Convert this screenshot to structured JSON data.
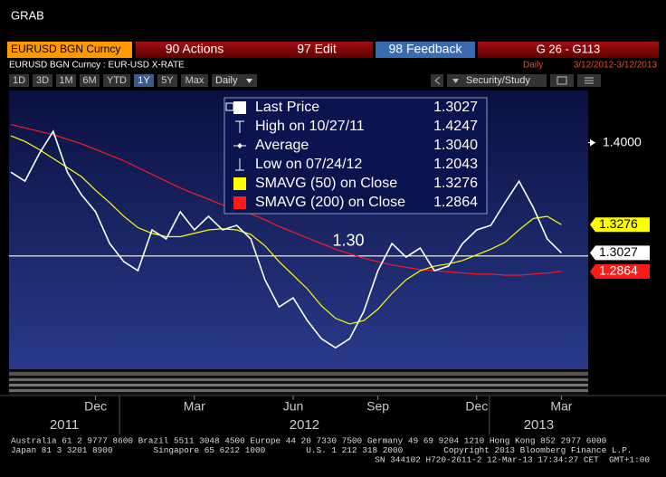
{
  "window": {
    "title": "GRAB"
  },
  "header": {
    "security": "EURUSD BGN Curncy",
    "actions": "90 Actions",
    "edit": "97 Edit",
    "feedback": "98 Feedback",
    "page": "G 26 - G113"
  },
  "subheader": {
    "description": "EURUSD BGN Curncy : EUR-USD X-RATE",
    "period": "Daily",
    "range": "3/12/2012-3/12/2013"
  },
  "toolbar": {
    "ranges": [
      "1D",
      "3D",
      "1M",
      "6M",
      "YTD",
      "1Y",
      "5Y",
      "Max"
    ],
    "selected_index": 5,
    "frequency": "Daily",
    "study": "Security/Study"
  },
  "chart_data": {
    "type": "line",
    "categories": [
      null,
      null,
      null,
      null,
      null,
      null,
      "Dec",
      null,
      null,
      null,
      null,
      null,
      null,
      "Mar",
      null,
      null,
      null,
      null,
      null,
      null,
      "Jun",
      null,
      null,
      null,
      null,
      null,
      "Sep",
      null,
      null,
      null,
      null,
      null,
      null,
      "Dec",
      null,
      null,
      null,
      null,
      null,
      "Mar"
    ],
    "periods": [
      "2011",
      "2012",
      "2013"
    ],
    "series": [
      {
        "name": "Last Price",
        "color": "#ffffff",
        "last_label": "1.3027",
        "values": [
          1.374,
          1.366,
          1.39,
          1.41,
          1.374,
          1.354,
          1.339,
          1.311,
          1.295,
          1.287,
          1.323,
          1.315,
          1.339,
          1.323,
          1.335,
          1.323,
          1.327,
          1.315,
          1.279,
          1.255,
          1.263,
          1.243,
          1.227,
          1.219,
          1.227,
          1.251,
          1.287,
          1.311,
          1.299,
          1.307,
          1.287,
          1.291,
          1.311,
          1.323,
          1.327,
          1.347,
          1.366,
          1.343,
          1.315,
          1.3027
        ]
      },
      {
        "name": "SMAVG (50) on Close",
        "color": "#ffff00",
        "last_label": "1.3276",
        "values": [
          1.406,
          1.401,
          1.394,
          1.386,
          1.378,
          1.37,
          1.358,
          1.347,
          1.335,
          1.325,
          1.32,
          1.317,
          1.317,
          1.32,
          1.323,
          1.324,
          1.323,
          1.319,
          1.309,
          1.295,
          1.283,
          1.271,
          1.256,
          1.245,
          1.24,
          1.243,
          1.253,
          1.267,
          1.279,
          1.287,
          1.291,
          1.293,
          1.296,
          1.301,
          1.306,
          1.312,
          1.323,
          1.333,
          1.335,
          1.3276
        ]
      },
      {
        "name": "SMAVG (200) on Close",
        "color": "#ff1a1a",
        "last_label": "1.2864",
        "values": [
          1.416,
          1.413,
          1.41,
          1.407,
          1.403,
          1.399,
          1.394,
          1.389,
          1.384,
          1.378,
          1.372,
          1.366,
          1.36,
          1.355,
          1.35,
          1.345,
          1.341,
          1.337,
          1.332,
          1.326,
          1.321,
          1.316,
          1.311,
          1.306,
          1.302,
          1.298,
          1.295,
          1.292,
          1.29,
          1.288,
          1.287,
          1.286,
          1.285,
          1.284,
          1.284,
          1.283,
          1.283,
          1.284,
          1.285,
          1.2864
        ]
      }
    ],
    "stats": [
      {
        "label": "High on 10/27/11",
        "value": "1.4247"
      },
      {
        "label": "Average",
        "value": "1.3040"
      },
      {
        "label": "Low on 07/24/12",
        "value": "1.2043"
      }
    ],
    "reference_line": {
      "value": 1.3,
      "label": "1.30"
    },
    "ylim": [
      1.2,
      1.446
    ],
    "yticks": [
      {
        "value": 1.4,
        "label": "1.4000"
      }
    ],
    "grid": false
  },
  "footer": {
    "lines": [
      "Australia 61 2 9777 8600 Brazil 5511 3048 4500 Europe 44 20 7330 7500 Germany 49 69 9204 1210 Hong Kong 852 2977 6000",
      "Japan 81 3 3201 8900        Singapore 65 6212 1000        U.S. 1 212 318 2000        Copyright 2013 Bloomberg Finance L.P.",
      "SN 344102 H720-2611-2 12-Mar-13 17:34:27 CET  GMT+1:00"
    ]
  }
}
